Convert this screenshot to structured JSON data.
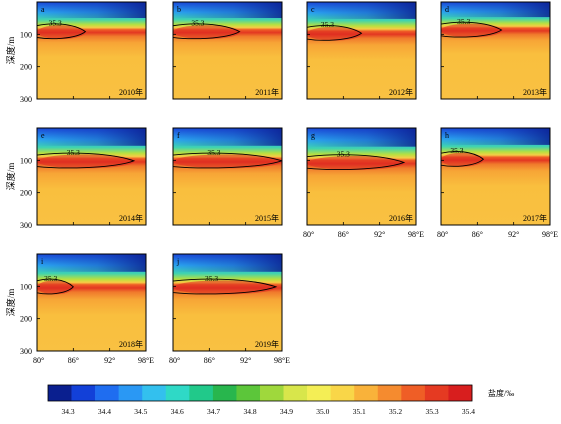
{
  "figure": {
    "ylabel": "深度/m",
    "yticks": [
      "100",
      "200",
      "300"
    ],
    "xticks": [
      "80°",
      "86°",
      "92°",
      "98°E"
    ],
    "contour_label": "35.3",
    "colorbar": {
      "title": "盐度/‰",
      "tick_labels": [
        "34.3",
        "34.4",
        "34.5",
        "34.6",
        "34.7",
        "34.8",
        "34.9",
        "35.0",
        "35.1",
        "35.2",
        "35.3",
        "35.4"
      ],
      "colors": [
        "#0a1f8f",
        "#1240d8",
        "#1f6df0",
        "#2a98f4",
        "#33c0ee",
        "#2fd9c6",
        "#21c98a",
        "#28b64d",
        "#5cc63a",
        "#9fd83c",
        "#d8e64b",
        "#f4ee55",
        "#f9d648",
        "#f9b23a",
        "#f58b2f",
        "#ef5e26",
        "#e53a22",
        "#d81e1e"
      ]
    }
  },
  "chart_data": [
    {
      "type": "heatmap",
      "panel": "a",
      "year_label": "2010年",
      "contour_level": 35.3,
      "xlim": [
        80,
        98
      ],
      "ylim": [
        300,
        0
      ],
      "salinity_core_depth_m": 90,
      "core_extent_lon": [
        80,
        88
      ]
    },
    {
      "type": "heatmap",
      "panel": "b",
      "year_label": "2011年",
      "contour_level": 35.3,
      "xlim": [
        80,
        98
      ],
      "ylim": [
        300,
        0
      ],
      "salinity_core_depth_m": 90,
      "core_extent_lon": [
        80,
        91
      ]
    },
    {
      "type": "heatmap",
      "panel": "c",
      "year_label": "2012年",
      "contour_level": 35.3,
      "xlim": [
        80,
        98
      ],
      "ylim": [
        300,
        0
      ],
      "salinity_core_depth_m": 95,
      "core_extent_lon": [
        80,
        89
      ]
    },
    {
      "type": "heatmap",
      "panel": "d",
      "year_label": "2013年",
      "contour_level": 35.3,
      "xlim": [
        80,
        98
      ],
      "ylim": [
        300,
        0
      ],
      "salinity_core_depth_m": 85,
      "core_extent_lon": [
        80,
        90
      ]
    },
    {
      "type": "heatmap",
      "panel": "e",
      "year_label": "2014年",
      "contour_level": 35.3,
      "xlim": [
        80,
        98
      ],
      "ylim": [
        300,
        0
      ],
      "salinity_core_depth_m": 100,
      "core_extent_lon": [
        80,
        96
      ]
    },
    {
      "type": "heatmap",
      "panel": "f",
      "year_label": "2015年",
      "contour_level": 35.3,
      "xlim": [
        80,
        98
      ],
      "ylim": [
        300,
        0
      ],
      "salinity_core_depth_m": 100,
      "core_extent_lon": [
        80,
        98
      ]
    },
    {
      "type": "heatmap",
      "panel": "g",
      "year_label": "2016年",
      "contour_level": 35.3,
      "xlim": [
        80,
        98
      ],
      "ylim": [
        300,
        0
      ],
      "salinity_core_depth_m": 105,
      "core_extent_lon": [
        80,
        96
      ]
    },
    {
      "type": "heatmap",
      "panel": "h",
      "year_label": "2017年",
      "contour_level": 35.3,
      "xlim": [
        80,
        98
      ],
      "ylim": [
        300,
        0
      ],
      "salinity_core_depth_m": 95,
      "core_extent_lon": [
        80,
        87
      ]
    },
    {
      "type": "heatmap",
      "panel": "i",
      "year_label": "2018年",
      "contour_level": 35.3,
      "xlim": [
        80,
        98
      ],
      "ylim": [
        300,
        0
      ],
      "salinity_core_depth_m": 100,
      "core_extent_lon": [
        80,
        86
      ]
    },
    {
      "type": "heatmap",
      "panel": "j",
      "year_label": "2019年",
      "contour_level": 35.3,
      "xlim": [
        80,
        98
      ],
      "ylim": [
        300,
        0
      ],
      "salinity_core_depth_m": 100,
      "core_extent_lon": [
        80,
        97
      ]
    }
  ]
}
